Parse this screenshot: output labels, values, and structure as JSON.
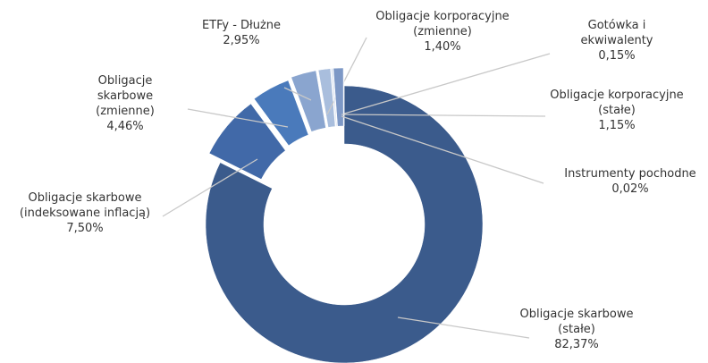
{
  "chart_data": {
    "type": "donut",
    "categories": [
      "Obligacje skarbowe (stałe)",
      "Obligacje skarbowe (indeksowane inflacją)",
      "Obligacje skarbowe (zmienne)",
      "ETFy - Dłużne",
      "Obligacje korporacyjne (zmienne)",
      "Gotówka i ekwiwalenty",
      "Obligacje korporacyjne (stałe)",
      "Instrumenty pochodne"
    ],
    "values": [
      82.37,
      7.5,
      4.46,
      2.95,
      1.4,
      0.15,
      1.15,
      0.02
    ],
    "value_labels": [
      "82,37%",
      "7,50%",
      "4,46%",
      "2,95%",
      "1,40%",
      "0,15%",
      "1,15%",
      "0,02%"
    ],
    "colors": [
      "#3b5b8c",
      "#4169a8",
      "#4a7abb",
      "#8aa5cf",
      "#a9bedd",
      "#c3d1e8",
      "#7d98c6",
      "#d5dfef"
    ]
  }
}
